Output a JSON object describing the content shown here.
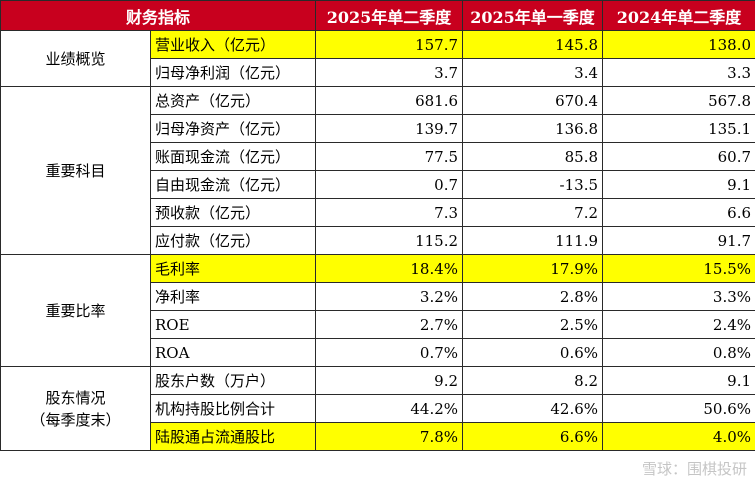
{
  "table": {
    "headers": [
      "财务指标",
      "2025年单二季度",
      "2025年单一季度",
      "2024年单二季度"
    ],
    "groups": [
      {
        "label": "业绩概览",
        "rows": [
          {
            "name": "营业收入（亿元）",
            "values": [
              "157.7",
              "145.8",
              "138.0"
            ],
            "highlight": true
          },
          {
            "name": "归母净利润（亿元）",
            "values": [
              "3.7",
              "3.4",
              "3.3"
            ],
            "highlight": false
          }
        ]
      },
      {
        "label": "重要科目",
        "rows": [
          {
            "name": "总资产（亿元）",
            "values": [
              "681.6",
              "670.4",
              "567.8"
            ],
            "highlight": false
          },
          {
            "name": "归母净资产（亿元）",
            "values": [
              "139.7",
              "136.8",
              "135.1"
            ],
            "highlight": false
          },
          {
            "name": "账面现金流（亿元）",
            "values": [
              "77.5",
              "85.8",
              "60.7"
            ],
            "highlight": false
          },
          {
            "name": "自由现金流（亿元）",
            "values": [
              "0.7",
              "-13.5",
              "9.1"
            ],
            "highlight": false
          },
          {
            "name": "预收款（亿元）",
            "values": [
              "7.3",
              "7.2",
              "6.6"
            ],
            "highlight": false
          },
          {
            "name": "应付款（亿元）",
            "values": [
              "115.2",
              "111.9",
              "91.7"
            ],
            "highlight": false
          }
        ]
      },
      {
        "label": "重要比率",
        "rows": [
          {
            "name": "毛利率",
            "values": [
              "18.4%",
              "17.9%",
              "15.5%"
            ],
            "highlight": true
          },
          {
            "name": "净利率",
            "values": [
              "3.2%",
              "2.8%",
              "3.3%"
            ],
            "highlight": false
          },
          {
            "name": "ROE",
            "values": [
              "2.7%",
              "2.5%",
              "2.4%"
            ],
            "highlight": false
          },
          {
            "name": "ROA",
            "values": [
              "0.7%",
              "0.6%",
              "0.8%"
            ],
            "highlight": false
          }
        ]
      },
      {
        "label": "股东情况\n（每季度末）",
        "rows": [
          {
            "name": "股东户数（万户）",
            "values": [
              "9.2",
              "8.2",
              "9.1"
            ],
            "highlight": false
          },
          {
            "name": "机构持股比例合计",
            "values": [
              "44.2%",
              "42.6%",
              "50.6%"
            ],
            "highlight": false
          },
          {
            "name": "陆股通占流通股比",
            "values": [
              "7.8%",
              "6.6%",
              "4.0%"
            ],
            "highlight": true
          }
        ]
      }
    ]
  },
  "watermark": "雪球：围棋投研",
  "colors": {
    "header_bg": "#c8001e",
    "highlight": "#ffff00"
  }
}
